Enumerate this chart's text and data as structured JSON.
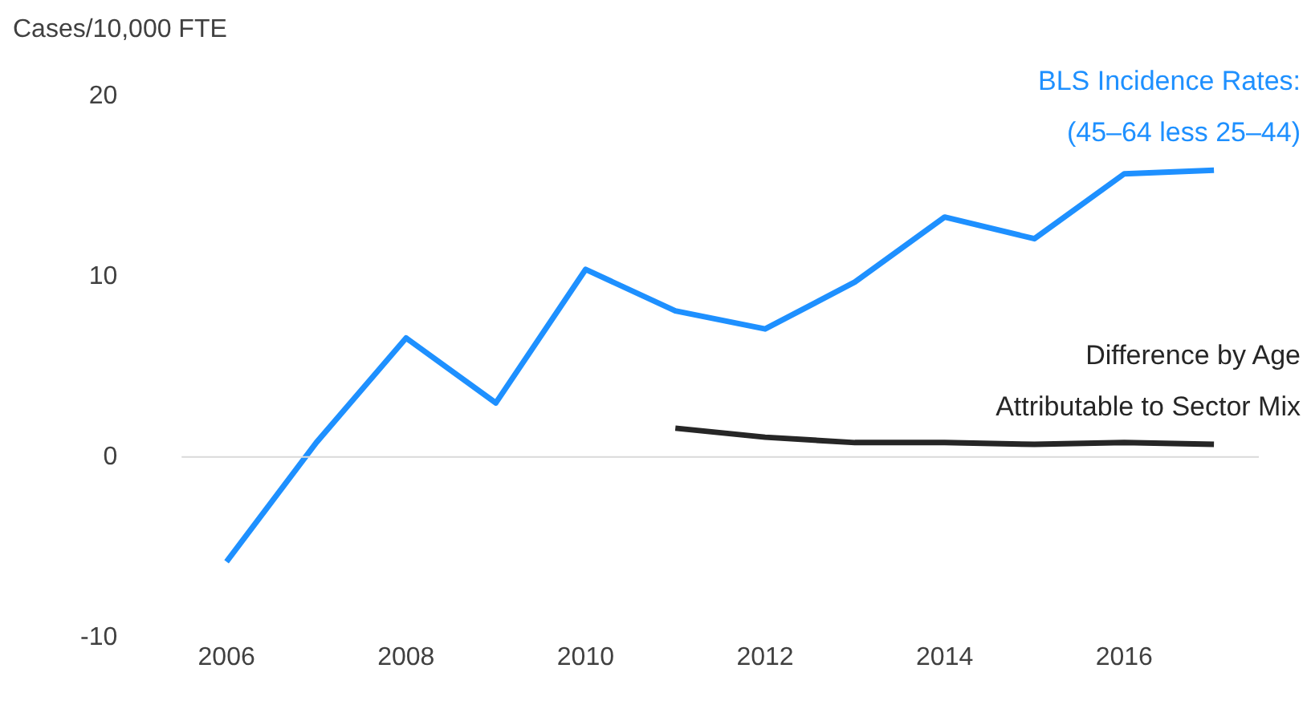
{
  "chart_data": {
    "type": "line",
    "ylabel": "Cases/10,000 FTE",
    "categories": [
      "2006",
      null,
      "2008",
      null,
      "2010",
      null,
      "2012",
      null,
      "2014",
      null,
      "2016",
      null
    ],
    "ylim": [
      -10,
      20
    ],
    "yticks": [
      -10,
      0,
      10,
      20
    ],
    "grid": false,
    "ref_lines": [
      {
        "axis": "y",
        "value": 0,
        "color": "#d9d9d9"
      }
    ],
    "legend": false,
    "marker": "none",
    "line_style": "solid",
    "series": [
      {
        "name": "BLS Incidence Rates:\n(45–64 less 25–44)",
        "color": "#1e90ff",
        "values": [
          -5.8,
          0.8,
          6.6,
          3.0,
          10.4,
          8.1,
          7.1,
          9.7,
          13.3,
          12.1,
          15.7,
          15.9
        ]
      },
      {
        "name": "Difference by Age\nAttributable to Sector Mix",
        "color": "#262626",
        "values": [
          null,
          null,
          null,
          null,
          null,
          1.6,
          1.1,
          0.8,
          0.8,
          0.7,
          0.8,
          0.7
        ]
      }
    ]
  }
}
